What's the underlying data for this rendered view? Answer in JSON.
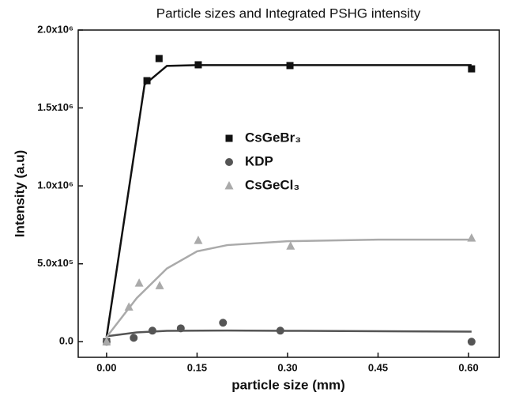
{
  "chart_data": {
    "type": "scatter",
    "title": "Particle sizes and Integrated PSHG intensity",
    "x_label": "particle size (mm)",
    "y_label": "Intensity (a.u)",
    "xlim": [
      -0.047,
      0.651
    ],
    "ylim": [
      -100000,
      2000000
    ],
    "xticks": [
      {
        "value": 0,
        "label": "0.00"
      },
      {
        "value": 0.15,
        "label": "0.15"
      },
      {
        "value": 0.3,
        "label": "0.30"
      },
      {
        "value": 0.45,
        "label": "0.45"
      },
      {
        "value": 0.6,
        "label": "0.60"
      }
    ],
    "yticks": [
      {
        "value": 0,
        "label": "0.0"
      },
      {
        "value": 500000,
        "label": "5.0x10⁵"
      },
      {
        "value": 1000000,
        "label": "1.0x10⁶"
      },
      {
        "value": 1500000,
        "label": "1.5x10⁶"
      },
      {
        "value": 2000000,
        "label": "2.0x10⁶"
      }
    ],
    "series": [
      {
        "name": "CsGeBr₃",
        "color": "#111111",
        "marker": "square",
        "x": [
          0,
          0.067,
          0.087,
          0.152,
          0.304,
          0.605
        ],
        "values": [
          0,
          1675000,
          1817000,
          1777000,
          1772000,
          1751000
        ]
      },
      {
        "name": "KDP",
        "color": "#555555",
        "marker": "circle",
        "x": [
          0,
          0.045,
          0.076,
          0.123,
          0.193,
          0.288,
          0.605
        ],
        "values": [
          0,
          25000,
          71000,
          86000,
          122000,
          71000,
          0
        ]
      },
      {
        "name": "CsGeCl₃",
        "color": "#aaaaaa",
        "marker": "triangle",
        "x": [
          0,
          0.037,
          0.054,
          0.088,
          0.152,
          0.305,
          0.605
        ],
        "values": [
          0,
          223000,
          376000,
          360000,
          650000,
          614000,
          665000
        ]
      }
    ],
    "fit_lines": [
      {
        "color": "#111111",
        "x": [
          0,
          0.063,
          0.1,
          0.15,
          0.3,
          0.605
        ],
        "values": [
          30000,
          1650000,
          1770000,
          1775000,
          1775000,
          1775000
        ]
      },
      {
        "color": "#555555",
        "x": [
          0,
          0.05,
          0.1,
          0.2,
          0.3,
          0.605
        ],
        "values": [
          35000,
          60000,
          70000,
          72000,
          70000,
          65000
        ]
      },
      {
        "color": "#aaaaaa",
        "x": [
          0,
          0.05,
          0.1,
          0.15,
          0.2,
          0.3,
          0.45,
          0.605
        ],
        "values": [
          30000,
          280000,
          470000,
          580000,
          620000,
          645000,
          655000,
          655000
        ]
      }
    ]
  }
}
